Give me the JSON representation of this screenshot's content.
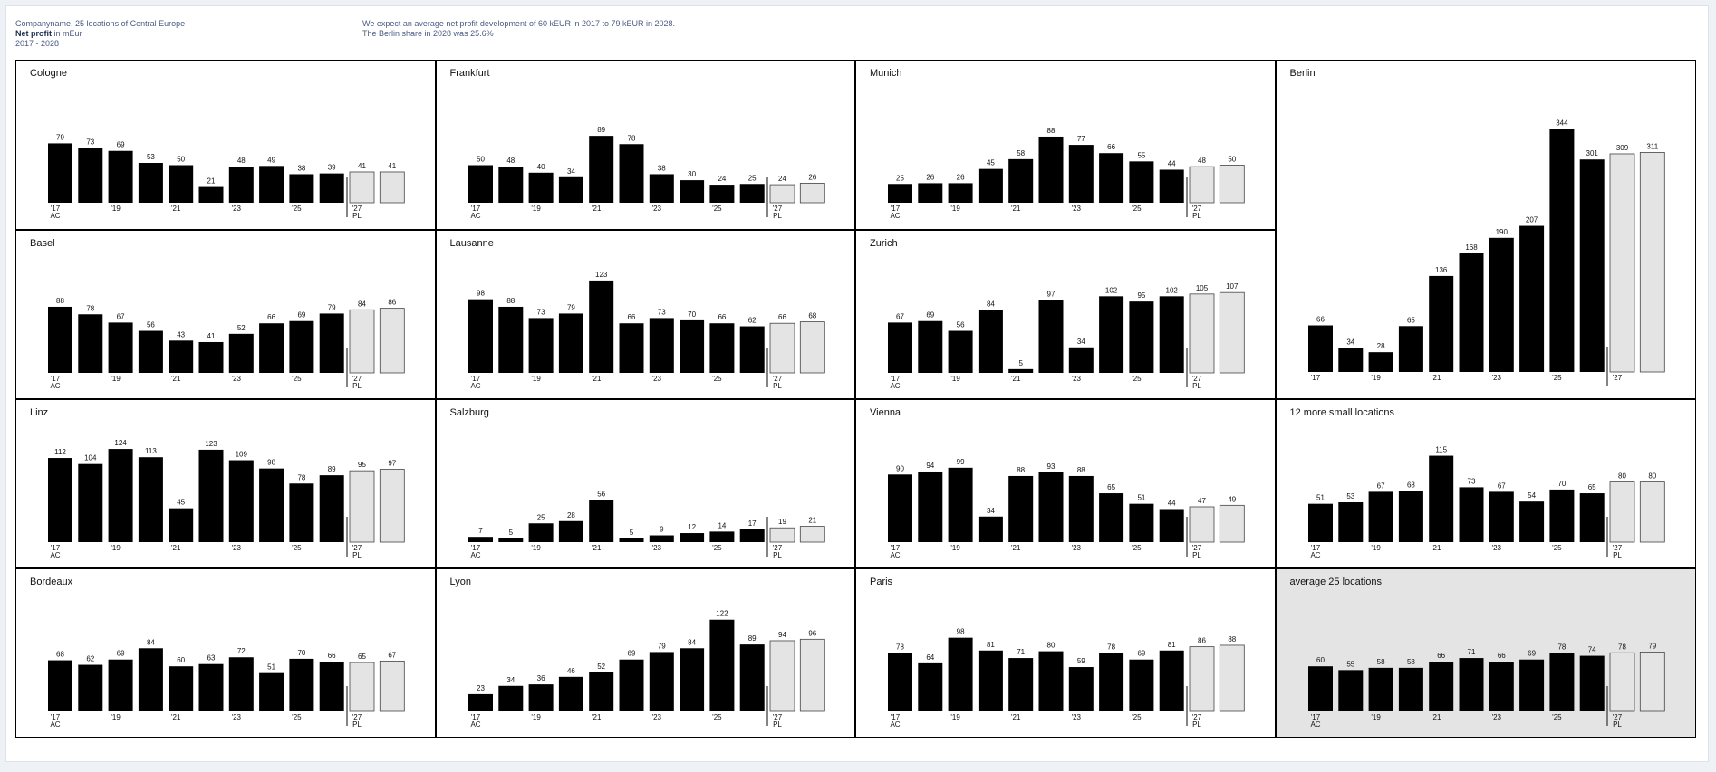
{
  "header": {
    "company": "Companyname, 25 locations of Central Europe",
    "measure_bold": "Net profit",
    "measure_rest": " in mEur",
    "period": "2017 - 2028",
    "message_line1": "We expect an average net profit development of 60 kEUR in 2017 to 79 kEUR in 2028.",
    "message_line2": "The Berlin share in 2028 was 25.6%"
  },
  "colors": {
    "actual": "#000000",
    "plan": "#e4e4e4",
    "avg_background": "#e4e4e4"
  },
  "chart_data": [
    {
      "type": "bar",
      "title": "Cologne",
      "categories": [
        "2017",
        "2018",
        "2019",
        "2020",
        "2021",
        "2022",
        "2023",
        "2024",
        "2025",
        "2026",
        "2027",
        "2028"
      ],
      "values": [
        79,
        73,
        69,
        53,
        50,
        21,
        48,
        49,
        38,
        39,
        41,
        41
      ],
      "scenario": [
        "AC",
        "AC",
        "AC",
        "AC",
        "AC",
        "AC",
        "AC",
        "AC",
        "AC",
        "AC",
        "PL",
        "PL"
      ],
      "tick_labels": [
        "'17",
        "",
        "'19",
        "",
        "'21",
        "",
        "'23",
        "",
        "'25",
        "",
        "'27",
        ""
      ],
      "scenario_labels": [
        "AC",
        "PL"
      ]
    },
    {
      "type": "bar",
      "title": "Frankfurt",
      "categories": [
        "2017",
        "2018",
        "2019",
        "2020",
        "2021",
        "2022",
        "2023",
        "2024",
        "2025",
        "2026",
        "2027",
        "2028"
      ],
      "values": [
        50,
        48,
        40,
        34,
        89,
        78,
        38,
        30,
        24,
        25,
        24,
        26
      ],
      "scenario": [
        "AC",
        "AC",
        "AC",
        "AC",
        "AC",
        "AC",
        "AC",
        "AC",
        "AC",
        "AC",
        "PL",
        "PL"
      ],
      "tick_labels": [
        "'17",
        "",
        "'19",
        "",
        "'21",
        "",
        "'23",
        "",
        "'25",
        "",
        "'27",
        ""
      ],
      "scenario_labels": [
        "AC",
        "PL"
      ]
    },
    {
      "type": "bar",
      "title": "Munich",
      "categories": [
        "2017",
        "2018",
        "2019",
        "2020",
        "2021",
        "2022",
        "2023",
        "2024",
        "2025",
        "2026",
        "2027",
        "2028"
      ],
      "values": [
        25,
        26,
        26,
        45,
        58,
        88,
        77,
        66,
        55,
        44,
        48,
        50
      ],
      "scenario": [
        "AC",
        "AC",
        "AC",
        "AC",
        "AC",
        "AC",
        "AC",
        "AC",
        "AC",
        "AC",
        "PL",
        "PL"
      ],
      "tick_labels": [
        "'17",
        "",
        "'19",
        "",
        "'21",
        "",
        "'23",
        "",
        "'25",
        "",
        "'27",
        ""
      ],
      "scenario_labels": [
        "AC",
        "PL"
      ]
    },
    {
      "type": "bar",
      "title": "Berlin",
      "categories": [
        "2017",
        "2018",
        "2019",
        "2020",
        "2021",
        "2022",
        "2023",
        "2024",
        "2025",
        "2026",
        "2027",
        "2028"
      ],
      "values": [
        66,
        34,
        28,
        65,
        136,
        168,
        190,
        207,
        344,
        301,
        309,
        311
      ],
      "scenario": [
        "AC",
        "AC",
        "AC",
        "AC",
        "AC",
        "AC",
        "AC",
        "AC",
        "AC",
        "AC",
        "PL",
        "PL"
      ],
      "tick_labels": [
        "'17",
        "",
        "'19",
        "",
        "'21",
        "",
        "'23",
        "",
        "'25",
        "",
        "'27",
        ""
      ],
      "scenario_labels": [
        "",
        ""
      ]
    },
    {
      "type": "bar",
      "title": "Basel",
      "categories": [
        "2017",
        "2018",
        "2019",
        "2020",
        "2021",
        "2022",
        "2023",
        "2024",
        "2025",
        "2026",
        "2027",
        "2028"
      ],
      "values": [
        88,
        78,
        67,
        56,
        43,
        41,
        52,
        66,
        69,
        79,
        84,
        86
      ],
      "scenario": [
        "AC",
        "AC",
        "AC",
        "AC",
        "AC",
        "AC",
        "AC",
        "AC",
        "AC",
        "AC",
        "PL",
        "PL"
      ],
      "tick_labels": [
        "'17",
        "",
        "'19",
        "",
        "'21",
        "",
        "'23",
        "",
        "'25",
        "",
        "'27",
        ""
      ],
      "scenario_labels": [
        "AC",
        "PL"
      ]
    },
    {
      "type": "bar",
      "title": "Lausanne",
      "categories": [
        "2017",
        "2018",
        "2019",
        "2020",
        "2021",
        "2022",
        "2023",
        "2024",
        "2025",
        "2026",
        "2027",
        "2028"
      ],
      "values": [
        98,
        88,
        73,
        79,
        123,
        66,
        73,
        70,
        66,
        62,
        66,
        68
      ],
      "scenario": [
        "AC",
        "AC",
        "AC",
        "AC",
        "AC",
        "AC",
        "AC",
        "AC",
        "AC",
        "AC",
        "PL",
        "PL"
      ],
      "tick_labels": [
        "'17",
        "",
        "'19",
        "",
        "'21",
        "",
        "'23",
        "",
        "'25",
        "",
        "'27",
        ""
      ],
      "scenario_labels": [
        "AC",
        "PL"
      ]
    },
    {
      "type": "bar",
      "title": "Zurich",
      "categories": [
        "2017",
        "2018",
        "2019",
        "2020",
        "2021",
        "2022",
        "2023",
        "2024",
        "2025",
        "2026",
        "2027",
        "2028"
      ],
      "values": [
        67,
        69,
        56,
        84,
        5,
        97,
        34,
        102,
        95,
        102,
        105,
        107
      ],
      "scenario": [
        "AC",
        "AC",
        "AC",
        "AC",
        "AC",
        "AC",
        "AC",
        "AC",
        "AC",
        "AC",
        "PL",
        "PL"
      ],
      "tick_labels": [
        "'17",
        "",
        "'19",
        "",
        "'21",
        "",
        "'23",
        "",
        "'25",
        "",
        "'27",
        ""
      ],
      "scenario_labels": [
        "AC",
        "PL"
      ]
    },
    {
      "type": "bar",
      "title": "Linz",
      "categories": [
        "2017",
        "2018",
        "2019",
        "2020",
        "2021",
        "2022",
        "2023",
        "2024",
        "2025",
        "2026",
        "2027",
        "2028"
      ],
      "values": [
        112,
        104,
        124,
        113,
        45,
        123,
        109,
        98,
        78,
        89,
        95,
        97
      ],
      "scenario": [
        "AC",
        "AC",
        "AC",
        "AC",
        "AC",
        "AC",
        "AC",
        "AC",
        "AC",
        "AC",
        "PL",
        "PL"
      ],
      "tick_labels": [
        "'17",
        "",
        "'19",
        "",
        "'21",
        "",
        "'23",
        "",
        "'25",
        "",
        "'27",
        ""
      ],
      "scenario_labels": [
        "AC",
        "PL"
      ]
    },
    {
      "type": "bar",
      "title": "Salzburg",
      "categories": [
        "2017",
        "2018",
        "2019",
        "2020",
        "2021",
        "2022",
        "2023",
        "2024",
        "2025",
        "2026",
        "2027",
        "2028"
      ],
      "values": [
        7,
        5,
        25,
        28,
        56,
        5,
        9,
        12,
        14,
        17,
        19,
        21
      ],
      "scenario": [
        "AC",
        "AC",
        "AC",
        "AC",
        "AC",
        "AC",
        "AC",
        "AC",
        "AC",
        "AC",
        "PL",
        "PL"
      ],
      "tick_labels": [
        "'17",
        "",
        "'19",
        "",
        "'21",
        "",
        "'23",
        "",
        "'25",
        "",
        "'27",
        ""
      ],
      "scenario_labels": [
        "AC",
        "PL"
      ]
    },
    {
      "type": "bar",
      "title": "Vienna",
      "categories": [
        "2017",
        "2018",
        "2019",
        "2020",
        "2021",
        "2022",
        "2023",
        "2024",
        "2025",
        "2026",
        "2027",
        "2028"
      ],
      "values": [
        90,
        94,
        99,
        34,
        88,
        93,
        88,
        65,
        51,
        44,
        47,
        49
      ],
      "scenario": [
        "AC",
        "AC",
        "AC",
        "AC",
        "AC",
        "AC",
        "AC",
        "AC",
        "AC",
        "AC",
        "PL",
        "PL"
      ],
      "tick_labels": [
        "'17",
        "",
        "'19",
        "",
        "'21",
        "",
        "'23",
        "",
        "'25",
        "",
        "'27",
        ""
      ],
      "scenario_labels": [
        "AC",
        "PL"
      ]
    },
    {
      "type": "bar",
      "title": "12 more small locations",
      "categories": [
        "2017",
        "2018",
        "2019",
        "2020",
        "2021",
        "2022",
        "2023",
        "2024",
        "2025",
        "2026",
        "2027",
        "2028"
      ],
      "values": [
        51,
        53,
        67,
        68,
        115,
        73,
        67,
        54,
        70,
        65,
        80,
        80
      ],
      "scenario": [
        "AC",
        "AC",
        "AC",
        "AC",
        "AC",
        "AC",
        "AC",
        "AC",
        "AC",
        "AC",
        "PL",
        "PL"
      ],
      "tick_labels": [
        "'17",
        "",
        "'19",
        "",
        "'21",
        "",
        "'23",
        "",
        "'25",
        "",
        "'27",
        ""
      ],
      "scenario_labels": [
        "AC",
        "PL"
      ]
    },
    {
      "type": "bar",
      "title": "Bordeaux",
      "categories": [
        "2017",
        "2018",
        "2019",
        "2020",
        "2021",
        "2022",
        "2023",
        "2024",
        "2025",
        "2026",
        "2027",
        "2028"
      ],
      "values": [
        68,
        62,
        69,
        84,
        60,
        63,
        72,
        51,
        70,
        66,
        65,
        67
      ],
      "scenario": [
        "AC",
        "AC",
        "AC",
        "AC",
        "AC",
        "AC",
        "AC",
        "AC",
        "AC",
        "AC",
        "PL",
        "PL"
      ],
      "tick_labels": [
        "'17",
        "",
        "'19",
        "",
        "'21",
        "",
        "'23",
        "",
        "'25",
        "",
        "'27",
        ""
      ],
      "scenario_labels": [
        "AC",
        "PL"
      ]
    },
    {
      "type": "bar",
      "title": "Lyon",
      "categories": [
        "2017",
        "2018",
        "2019",
        "2020",
        "2021",
        "2022",
        "2023",
        "2024",
        "2025",
        "2026",
        "2027",
        "2028"
      ],
      "values": [
        23,
        34,
        36,
        46,
        52,
        69,
        79,
        84,
        122,
        89,
        94,
        96
      ],
      "scenario": [
        "AC",
        "AC",
        "AC",
        "AC",
        "AC",
        "AC",
        "AC",
        "AC",
        "AC",
        "AC",
        "PL",
        "PL"
      ],
      "tick_labels": [
        "'17",
        "",
        "'19",
        "",
        "'21",
        "",
        "'23",
        "",
        "'25",
        "",
        "'27",
        ""
      ],
      "scenario_labels": [
        "AC",
        "PL"
      ]
    },
    {
      "type": "bar",
      "title": "Paris",
      "categories": [
        "2017",
        "2018",
        "2019",
        "2020",
        "2021",
        "2022",
        "2023",
        "2024",
        "2025",
        "2026",
        "2027",
        "2028"
      ],
      "values": [
        78,
        64,
        98,
        81,
        71,
        80,
        59,
        78,
        69,
        81,
        86,
        88
      ],
      "scenario": [
        "AC",
        "AC",
        "AC",
        "AC",
        "AC",
        "AC",
        "AC",
        "AC",
        "AC",
        "AC",
        "PL",
        "PL"
      ],
      "tick_labels": [
        "'17",
        "",
        "'19",
        "",
        "'21",
        "",
        "'23",
        "",
        "'25",
        "",
        "'27",
        ""
      ],
      "scenario_labels": [
        "AC",
        "PL"
      ]
    },
    {
      "type": "bar",
      "title": "average 25 locations",
      "categories": [
        "2017",
        "2018",
        "2019",
        "2020",
        "2021",
        "2022",
        "2023",
        "2024",
        "2025",
        "2026",
        "2027",
        "2028"
      ],
      "values": [
        60,
        55,
        58,
        58,
        66,
        71,
        66,
        69,
        78,
        74,
        78,
        79
      ],
      "scenario": [
        "AC",
        "AC",
        "AC",
        "AC",
        "AC",
        "AC",
        "AC",
        "AC",
        "AC",
        "AC",
        "PL",
        "PL"
      ],
      "tick_labels": [
        "'17",
        "",
        "'19",
        "",
        "'21",
        "",
        "'23",
        "",
        "'25",
        "",
        "'27",
        ""
      ],
      "scenario_labels": [
        "AC",
        "PL"
      ]
    }
  ]
}
